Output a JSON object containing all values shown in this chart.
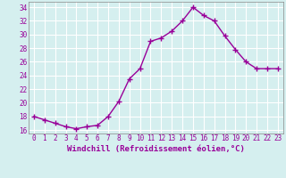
{
  "x": [
    0,
    1,
    2,
    3,
    4,
    5,
    6,
    7,
    8,
    9,
    10,
    11,
    12,
    13,
    14,
    15,
    16,
    17,
    18,
    19,
    20,
    21,
    22,
    23
  ],
  "y": [
    18.0,
    17.5,
    17.0,
    16.5,
    16.2,
    16.5,
    16.7,
    18.0,
    20.2,
    23.5,
    25.0,
    29.0,
    29.5,
    30.5,
    32.0,
    34.0,
    32.8,
    32.0,
    29.8,
    27.8,
    26.0,
    25.0,
    25.0,
    25.0
  ],
  "line_color": "#990099",
  "marker": "+",
  "marker_size": 4,
  "marker_lw": 1.0,
  "line_width": 1.0,
  "xlabel": "Windchill (Refroidissement éolien,°C)",
  "ylabel": "",
  "xlim": [
    -0.5,
    23.5
  ],
  "ylim": [
    15.5,
    34.8
  ],
  "yticks": [
    16,
    18,
    20,
    22,
    24,
    26,
    28,
    30,
    32,
    34
  ],
  "xtick_labels": [
    "0",
    "1",
    "2",
    "3",
    "4",
    "5",
    "6",
    "7",
    "8",
    "9",
    "10",
    "11",
    "12",
    "13",
    "14",
    "15",
    "16",
    "17",
    "18",
    "19",
    "20",
    "21",
    "22",
    "23"
  ],
  "background_color": "#d5efef",
  "grid_color": "#b8d8d8",
  "tick_color": "#990099",
  "label_color": "#990099",
  "font": "monospace",
  "xlabel_fontsize": 6.5,
  "tick_fontsize": 5.5
}
